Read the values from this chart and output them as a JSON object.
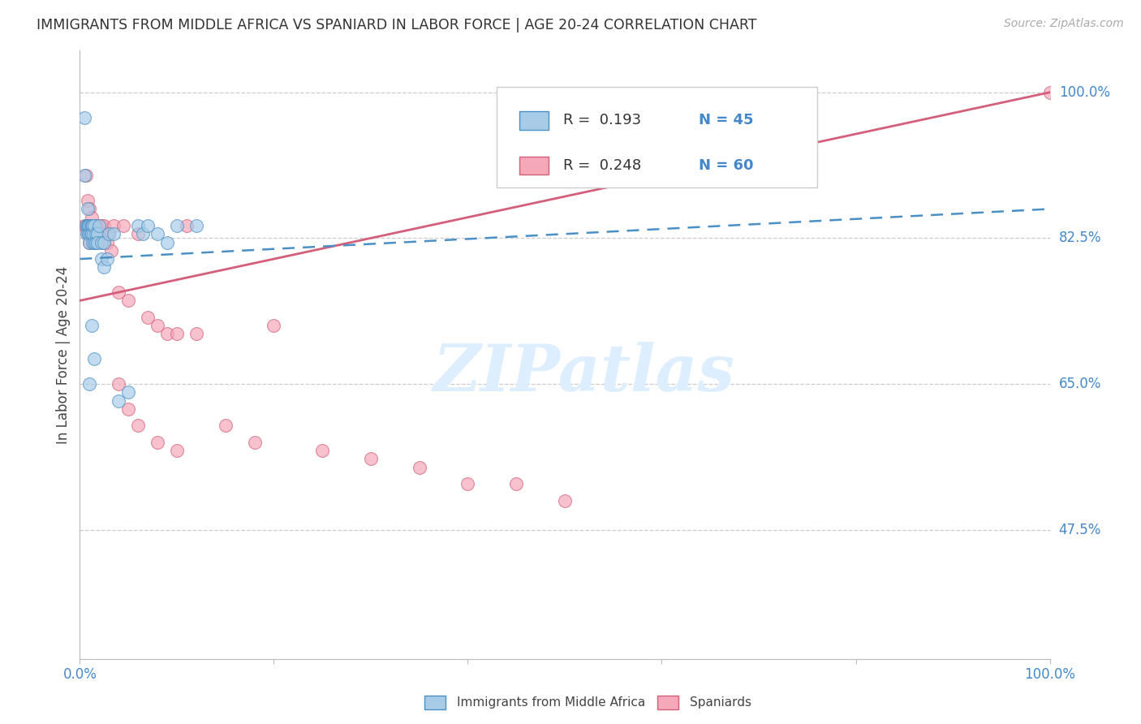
{
  "title": "IMMIGRANTS FROM MIDDLE AFRICA VS SPANIARD IN LABOR FORCE | AGE 20-24 CORRELATION CHART",
  "source": "Source: ZipAtlas.com",
  "ylabel": "In Labor Force | Age 20-24",
  "ytick_labels": [
    "47.5%",
    "65.0%",
    "82.5%",
    "100.0%"
  ],
  "ytick_values": [
    0.475,
    0.65,
    0.825,
    1.0
  ],
  "xlim": [
    0.0,
    1.0
  ],
  "ylim": [
    0.32,
    1.05
  ],
  "legend_label1": "Immigrants from Middle Africa",
  "legend_label2": "Spaniards",
  "R1": "0.193",
  "N1": "45",
  "R2": "0.248",
  "N2": "60",
  "color_blue_fill": "#a8cce8",
  "color_blue_edge": "#4a90c4",
  "color_blue_line": "#4a90c4",
  "color_pink_fill": "#f4a8b8",
  "color_pink_edge": "#d45f7a",
  "color_pink_line": "#d45f7a",
  "watermark": "ZIPatlas",
  "watermark_color": "#ddeeff",
  "blue_x": [
    0.005,
    0.006,
    0.007,
    0.008,
    0.008,
    0.009,
    0.009,
    0.01,
    0.01,
    0.01,
    0.011,
    0.011,
    0.012,
    0.012,
    0.013,
    0.013,
    0.014,
    0.015,
    0.015,
    0.016,
    0.016,
    0.018,
    0.018,
    0.02,
    0.022,
    0.022,
    0.025,
    0.025,
    0.028,
    0.03,
    0.035,
    0.04,
    0.05,
    0.06,
    0.065,
    0.07,
    0.08,
    0.09,
    0.1,
    0.12,
    0.005,
    0.008,
    0.01,
    0.012,
    0.015
  ],
  "blue_y": [
    0.97,
    0.84,
    0.83,
    0.84,
    0.84,
    0.84,
    0.83,
    0.83,
    0.84,
    0.82,
    0.84,
    0.83,
    0.84,
    0.83,
    0.84,
    0.82,
    0.83,
    0.84,
    0.82,
    0.83,
    0.82,
    0.83,
    0.82,
    0.84,
    0.82,
    0.8,
    0.82,
    0.79,
    0.8,
    0.83,
    0.83,
    0.63,
    0.64,
    0.84,
    0.83,
    0.84,
    0.83,
    0.82,
    0.84,
    0.84,
    0.9,
    0.86,
    0.65,
    0.72,
    0.68
  ],
  "pink_x": [
    0.005,
    0.006,
    0.007,
    0.008,
    0.008,
    0.009,
    0.009,
    0.01,
    0.01,
    0.01,
    0.011,
    0.012,
    0.012,
    0.013,
    0.014,
    0.015,
    0.016,
    0.018,
    0.02,
    0.022,
    0.025,
    0.03,
    0.035,
    0.04,
    0.045,
    0.05,
    0.06,
    0.07,
    0.08,
    0.09,
    0.1,
    0.11,
    0.12,
    0.15,
    0.18,
    0.2,
    0.25,
    0.3,
    0.35,
    0.4,
    0.45,
    0.5,
    0.006,
    0.008,
    0.01,
    0.012,
    0.014,
    0.016,
    0.018,
    0.02,
    0.022,
    0.025,
    0.028,
    0.032,
    0.04,
    0.05,
    0.06,
    0.08,
    0.1,
    1.0
  ],
  "pink_y": [
    0.84,
    0.84,
    0.84,
    0.84,
    0.83,
    0.84,
    0.84,
    0.84,
    0.83,
    0.82,
    0.84,
    0.84,
    0.83,
    0.84,
    0.83,
    0.82,
    0.84,
    0.83,
    0.84,
    0.84,
    0.84,
    0.83,
    0.84,
    0.76,
    0.84,
    0.75,
    0.83,
    0.73,
    0.72,
    0.71,
    0.71,
    0.84,
    0.71,
    0.6,
    0.58,
    0.72,
    0.57,
    0.56,
    0.55,
    0.53,
    0.53,
    0.51,
    0.9,
    0.87,
    0.86,
    0.85,
    0.84,
    0.84,
    0.83,
    0.83,
    0.83,
    0.82,
    0.82,
    0.81,
    0.65,
    0.62,
    0.6,
    0.58,
    0.57,
    1.0
  ],
  "pink_line_x0": 0.0,
  "pink_line_y0": 0.75,
  "pink_line_x1": 1.0,
  "pink_line_y1": 1.0,
  "blue_line_x0": 0.0,
  "blue_line_y0": 0.8,
  "blue_line_x1": 1.0,
  "blue_line_y1": 0.86
}
